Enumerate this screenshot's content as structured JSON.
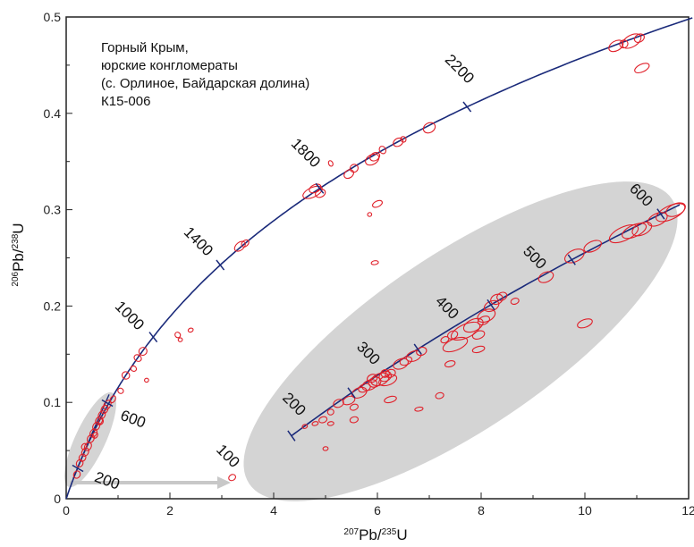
{
  "chart_data": {
    "type": "scatter",
    "title": "",
    "info_lines": [
      "Горный Крым,",
      "юрские конгломераты",
      "(с. Орлиное, Байдарская долина)",
      "К15-006"
    ],
    "xlabel": {
      "sup1": "207",
      "base1": "Pb/",
      "sup2": "235",
      "base2": "U"
    },
    "ylabel": {
      "sup1": "206",
      "base1": "Pb/",
      "sup2": "238",
      "base2": "U"
    },
    "xlim": [
      0,
      12
    ],
    "ylim": [
      0,
      0.5
    ],
    "xticks": [
      "0",
      "2",
      "4",
      "6",
      "8",
      "10",
      "12"
    ],
    "xtick_values": [
      0,
      2,
      4,
      6,
      8,
      10,
      12
    ],
    "yticks": [
      "0",
      "0.1",
      "0.2",
      "0.3",
      "0.4",
      "0.5"
    ],
    "ytick_values": [
      0,
      0.1,
      0.2,
      0.3,
      0.4,
      0.5
    ],
    "grid": false,
    "colors": {
      "concordia": "#1a2a7a",
      "ellipse": "#e0202a",
      "highlight": "#d4d4d4",
      "arrow": "#c8c8c8"
    },
    "concordia_ages_main": [
      {
        "age": 1000,
        "label": "1000"
      },
      {
        "age": 1400,
        "label": "1400"
      },
      {
        "age": 1800,
        "label": "1800"
      },
      {
        "age": 2200,
        "label": "2200"
      }
    ],
    "concordia_ages_inset_large": [
      {
        "age": 100,
        "label": "100"
      },
      {
        "age": 200,
        "label": "200"
      },
      {
        "age": 300,
        "label": "300"
      },
      {
        "age": 400,
        "label": "400"
      },
      {
        "age": 500,
        "label": "500"
      },
      {
        "age": 600,
        "label": "600"
      }
    ],
    "concordia_ages_inset_small": [
      {
        "age": 200,
        "label": "200"
      },
      {
        "age": 600,
        "label": "600"
      }
    ],
    "ellipses_main": [
      [
        0.25,
        0.035,
        0.06,
        0.004,
        55
      ],
      [
        0.3,
        0.045,
        0.06,
        0.004,
        55
      ],
      [
        0.35,
        0.05,
        0.06,
        0.004,
        55
      ],
      [
        0.4,
        0.055,
        0.07,
        0.004,
        55
      ],
      [
        0.45,
        0.06,
        0.07,
        0.004,
        55
      ],
      [
        0.5,
        0.067,
        0.07,
        0.004,
        55
      ],
      [
        0.55,
        0.072,
        0.07,
        0.004,
        55
      ],
      [
        0.6,
        0.078,
        0.07,
        0.004,
        55
      ],
      [
        0.65,
        0.083,
        0.07,
        0.004,
        55
      ],
      [
        0.7,
        0.088,
        0.07,
        0.004,
        55
      ],
      [
        0.75,
        0.093,
        0.07,
        0.004,
        55
      ],
      [
        0.8,
        0.097,
        0.08,
        0.004,
        55
      ],
      [
        0.38,
        0.06,
        0.05,
        0.003,
        55
      ],
      [
        0.58,
        0.07,
        0.05,
        0.003,
        55
      ],
      [
        0.68,
        0.082,
        0.05,
        0.003,
        55
      ],
      [
        0.9,
        0.102,
        0.06,
        0.003,
        55
      ],
      [
        1.05,
        0.112,
        0.05,
        0.003,
        55
      ],
      [
        1.15,
        0.128,
        0.07,
        0.004,
        55
      ],
      [
        1.3,
        0.135,
        0.05,
        0.003,
        55
      ],
      [
        1.38,
        0.146,
        0.06,
        0.004,
        55
      ],
      [
        1.48,
        0.153,
        0.08,
        0.004,
        40
      ],
      [
        1.55,
        0.123,
        0.04,
        0.002,
        20
      ],
      [
        2.15,
        0.17,
        0.05,
        0.003,
        40
      ],
      [
        2.2,
        0.165,
        0.04,
        0.002,
        20
      ],
      [
        2.4,
        0.175,
        0.05,
        0.002,
        20
      ],
      [
        3.35,
        0.262,
        0.12,
        0.004,
        40
      ],
      [
        3.45,
        0.265,
        0.08,
        0.003,
        40
      ],
      [
        4.75,
        0.318,
        0.2,
        0.005,
        25
      ],
      [
        4.9,
        0.317,
        0.1,
        0.004,
        25
      ],
      [
        4.8,
        0.322,
        0.12,
        0.004,
        25
      ],
      [
        5.1,
        0.348,
        0.04,
        0.003,
        25
      ],
      [
        5.45,
        0.337,
        0.1,
        0.004,
        35
      ],
      [
        5.55,
        0.343,
        0.08,
        0.004,
        35
      ],
      [
        5.9,
        0.352,
        0.14,
        0.005,
        30
      ],
      [
        5.95,
        0.355,
        0.1,
        0.004,
        30
      ],
      [
        6.1,
        0.362,
        0.06,
        0.004,
        30
      ],
      [
        6.4,
        0.37,
        0.1,
        0.004,
        30
      ],
      [
        6.5,
        0.373,
        0.05,
        0.003,
        30
      ],
      [
        7.0,
        0.385,
        0.12,
        0.005,
        30
      ],
      [
        6.0,
        0.306,
        0.1,
        0.003,
        25
      ],
      [
        5.85,
        0.295,
        0.04,
        0.002,
        20
      ],
      [
        5.95,
        0.245,
        0.07,
        0.002,
        10
      ],
      [
        10.6,
        0.47,
        0.15,
        0.005,
        30
      ],
      [
        10.9,
        0.475,
        0.2,
        0.006,
        30
      ],
      [
        11.05,
        0.478,
        0.1,
        0.004,
        30
      ],
      [
        10.75,
        0.472,
        0.08,
        0.004,
        30
      ],
      [
        11.1,
        0.447,
        0.15,
        0.004,
        25
      ]
    ],
    "inset_large_ellipses": [
      [
        3.2,
        0.022,
        0.07,
        0.003,
        30
      ],
      [
        4.6,
        0.075,
        0.05,
        0.002,
        15
      ],
      [
        4.8,
        0.078,
        0.06,
        0.002,
        15
      ],
      [
        4.95,
        0.082,
        0.08,
        0.003,
        20
      ],
      [
        5.1,
        0.09,
        0.06,
        0.003,
        20
      ],
      [
        5.25,
        0.099,
        0.1,
        0.004,
        20
      ],
      [
        5.45,
        0.102,
        0.12,
        0.004,
        22
      ],
      [
        5.55,
        0.095,
        0.08,
        0.003,
        20
      ],
      [
        5.65,
        0.11,
        0.15,
        0.005,
        22
      ],
      [
        5.75,
        0.115,
        0.12,
        0.004,
        22
      ],
      [
        5.85,
        0.118,
        0.15,
        0.005,
        22
      ],
      [
        5.95,
        0.121,
        0.12,
        0.005,
        22
      ],
      [
        6.05,
        0.124,
        0.18,
        0.006,
        22
      ],
      [
        6.15,
        0.127,
        0.12,
        0.005,
        22
      ],
      [
        6.25,
        0.13,
        0.1,
        0.004,
        22
      ],
      [
        6.45,
        0.14,
        0.15,
        0.005,
        22
      ],
      [
        6.55,
        0.143,
        0.12,
        0.004,
        22
      ],
      [
        6.7,
        0.148,
        0.15,
        0.005,
        22
      ],
      [
        6.85,
        0.153,
        0.1,
        0.004,
        22
      ],
      [
        5.55,
        0.082,
        0.08,
        0.003,
        15
      ],
      [
        5.1,
        0.078,
        0.06,
        0.002,
        10
      ],
      [
        5.0,
        0.052,
        0.05,
        0.002,
        10
      ],
      [
        6.25,
        0.103,
        0.12,
        0.003,
        15
      ],
      [
        6.8,
        0.093,
        0.08,
        0.002,
        10
      ],
      [
        7.2,
        0.107,
        0.08,
        0.003,
        15
      ],
      [
        6.2,
        0.123,
        0.18,
        0.005,
        20
      ],
      [
        7.5,
        0.16,
        0.25,
        0.006,
        22
      ],
      [
        7.7,
        0.174,
        0.3,
        0.007,
        25
      ],
      [
        7.85,
        0.18,
        0.2,
        0.006,
        25
      ],
      [
        7.95,
        0.17,
        0.12,
        0.004,
        20
      ],
      [
        8.1,
        0.19,
        0.18,
        0.006,
        25
      ],
      [
        8.2,
        0.2,
        0.15,
        0.005,
        25
      ],
      [
        8.05,
        0.185,
        0.12,
        0.004,
        25
      ],
      [
        8.3,
        0.207,
        0.12,
        0.005,
        25
      ],
      [
        8.4,
        0.21,
        0.1,
        0.004,
        25
      ],
      [
        8.65,
        0.205,
        0.08,
        0.003,
        20
      ],
      [
        7.95,
        0.155,
        0.12,
        0.003,
        15
      ],
      [
        7.4,
        0.14,
        0.1,
        0.003,
        15
      ],
      [
        9.25,
        0.23,
        0.15,
        0.005,
        25
      ],
      [
        9.8,
        0.252,
        0.2,
        0.006,
        25
      ],
      [
        10.0,
        0.182,
        0.15,
        0.004,
        20
      ],
      [
        10.15,
        0.262,
        0.18,
        0.005,
        25
      ],
      [
        10.75,
        0.275,
        0.3,
        0.007,
        25
      ],
      [
        10.95,
        0.278,
        0.25,
        0.006,
        25
      ],
      [
        11.1,
        0.28,
        0.2,
        0.006,
        25
      ],
      [
        11.4,
        0.29,
        0.2,
        0.006,
        25
      ],
      [
        11.65,
        0.297,
        0.3,
        0.007,
        25
      ],
      [
        11.75,
        0.3,
        0.2,
        0.006,
        25
      ],
      [
        7.45,
        0.17,
        0.1,
        0.004,
        25
      ],
      [
        7.3,
        0.165,
        0.08,
        0.003,
        25
      ],
      [
        6.15,
        0.13,
        0.08,
        0.004,
        20
      ],
      [
        5.9,
        0.125,
        0.1,
        0.004,
        20
      ]
    ]
  }
}
